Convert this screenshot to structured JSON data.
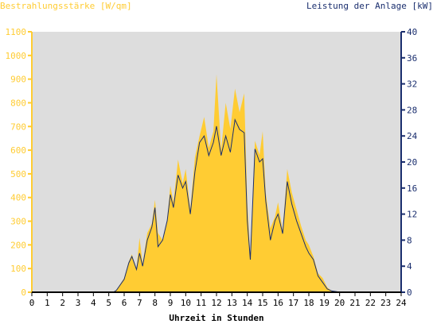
{
  "chart_data": {
    "type": "area",
    "title_left": "Bestrahlungsstärke [W/qm]",
    "title_right": "Leistung der Anlage [kW]",
    "xlabel": "Uhrzeit in Stunden",
    "xlim": [
      0,
      24
    ],
    "x_ticks": [
      "0",
      "1",
      "2",
      "3",
      "4",
      "5",
      "6",
      "7",
      "8",
      "9",
      "10",
      "11",
      "12",
      "13",
      "14",
      "15",
      "16",
      "17",
      "18",
      "19",
      "20",
      "21",
      "22",
      "23",
      "24"
    ],
    "y_left_lim": [
      0,
      1100
    ],
    "y_left_ticks": [
      "0",
      "100",
      "200",
      "300",
      "400",
      "500",
      "600",
      "700",
      "800",
      "900",
      "1000",
      "1100"
    ],
    "y_right_lim": [
      0,
      40
    ],
    "y_right_ticks": [
      "0",
      "4",
      "8",
      "12",
      "16",
      "20",
      "24",
      "28",
      "32",
      "36",
      "40"
    ],
    "grid": false,
    "colors": {
      "left_axis": "#ffcc33",
      "right_axis": "#1a2e6e",
      "irradiance_fill": "#ffcc33",
      "power_line": "#1a2e6e",
      "plot_background": "#dddddd"
    },
    "series": [
      {
        "axis": "left",
        "x": [
          0,
          5.3,
          5.5,
          6.0,
          6.3,
          6.5,
          6.8,
          7.0,
          7.2,
          7.5,
          7.8,
          8.0,
          8.2,
          8.5,
          8.8,
          9.0,
          9.2,
          9.5,
          9.8,
          10.0,
          10.3,
          10.6,
          10.9,
          11.2,
          11.5,
          11.8,
          12.0,
          12.3,
          12.6,
          12.9,
          13.2,
          13.5,
          13.8,
          14.0,
          14.2,
          14.5,
          14.8,
          15.0,
          15.2,
          15.5,
          15.8,
          16.0,
          16.3,
          16.6,
          16.9,
          17.2,
          17.5,
          17.8,
          18.0,
          18.3,
          18.6,
          18.9,
          19.2,
          19.5,
          19.8,
          20.0,
          20.3,
          21.0,
          24
        ],
        "values": [
          0,
          0,
          10,
          60,
          130,
          160,
          100,
          230,
          120,
          250,
          290,
          390,
          250,
          220,
          310,
          450,
          380,
          560,
          460,
          520,
          350,
          570,
          660,
          740,
          610,
          680,
          920,
          600,
          800,
          690,
          860,
          760,
          840,
          380,
          150,
          640,
          580,
          680,
          420,
          270,
          320,
          380,
          260,
          520,
          420,
          350,
          280,
          220,
          200,
          150,
          80,
          60,
          20,
          5,
          2,
          0,
          0,
          0,
          0
        ]
      },
      {
        "axis": "right",
        "x": [
          0,
          5.3,
          5.5,
          6.0,
          6.3,
          6.5,
          6.8,
          7.0,
          7.2,
          7.5,
          7.8,
          8.0,
          8.2,
          8.5,
          8.8,
          9.0,
          9.2,
          9.5,
          9.8,
          10.0,
          10.3,
          10.6,
          10.9,
          11.2,
          11.5,
          11.8,
          12.0,
          12.3,
          12.6,
          12.9,
          13.2,
          13.5,
          13.8,
          14.0,
          14.2,
          14.5,
          14.8,
          15.0,
          15.2,
          15.5,
          15.8,
          16.0,
          16.3,
          16.6,
          16.9,
          17.2,
          17.5,
          17.8,
          18.0,
          18.3,
          18.6,
          18.9,
          19.2,
          19.5,
          19.8,
          20.0,
          20.3,
          21.0,
          24
        ],
        "values": [
          0,
          0,
          0.3,
          2.0,
          4.5,
          5.5,
          3.5,
          6.0,
          4.0,
          8.0,
          10.0,
          13.0,
          7.0,
          8.0,
          11.0,
          15.0,
          13.0,
          18.0,
          16.0,
          17.0,
          12.0,
          18.5,
          23.0,
          24.0,
          21.0,
          23.0,
          25.5,
          21.0,
          24.0,
          21.5,
          26.5,
          25.0,
          24.5,
          11.0,
          5.0,
          22.0,
          20.0,
          20.5,
          14.0,
          8.0,
          11.0,
          12.0,
          9.0,
          17.0,
          13.5,
          11.0,
          9.0,
          7.0,
          6.0,
          5.0,
          2.5,
          1.5,
          0.5,
          0.2,
          0.1,
          0,
          0,
          0,
          0
        ]
      }
    ]
  }
}
